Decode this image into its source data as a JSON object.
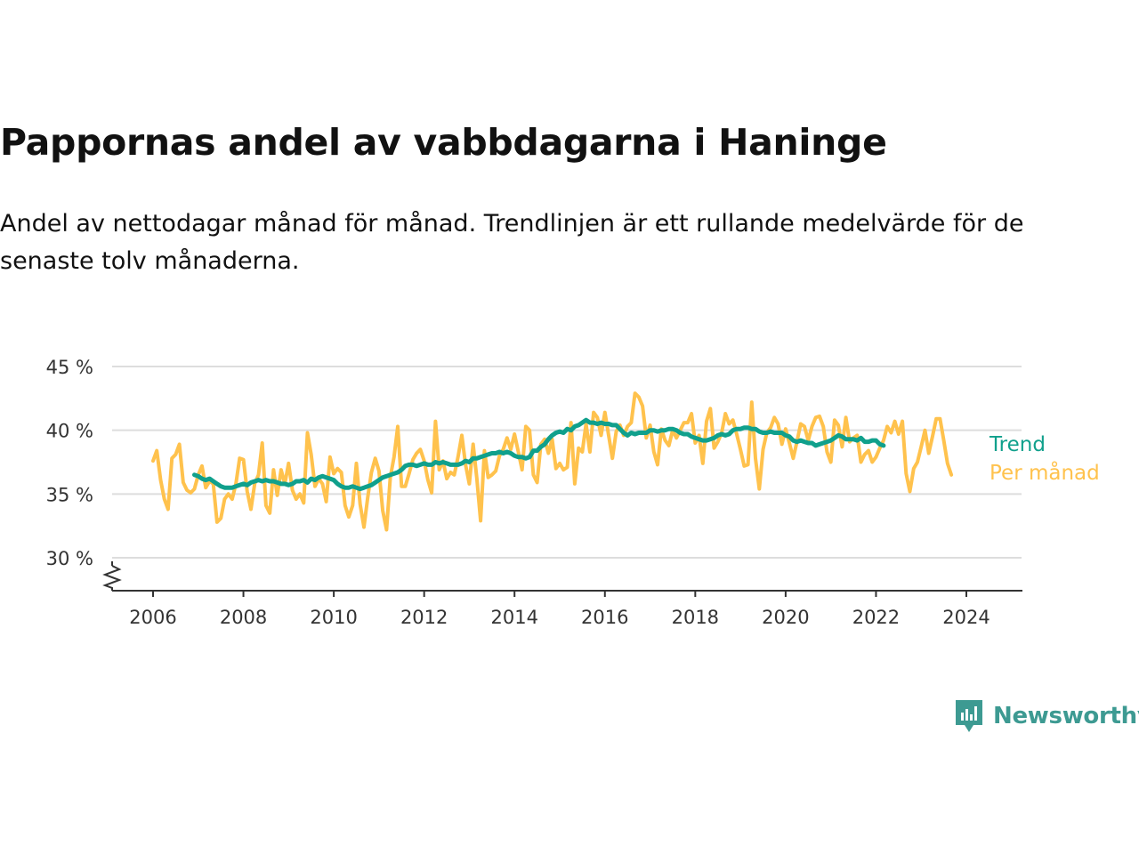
{
  "title": "Pappornas andel av vabbdagarna i Haninge",
  "subtitle": "Andel av nettodagar månad för månad. Trendlinjen är ett rullande medelvärde för de senaste tolv månaderna.",
  "brand": {
    "name": "Newsworthy",
    "icon": "newsworthy-logo-icon",
    "color": "#3d9a92"
  },
  "chart_data": {
    "type": "line",
    "x_unit": "decimal-year",
    "ylim": [
      27,
      45
    ],
    "y_axis_break": true,
    "y_ticks": [
      {
        "value": 45,
        "label": "45 %"
      },
      {
        "value": 40,
        "label": "40 %"
      },
      {
        "value": 35,
        "label": "35 %"
      },
      {
        "value": 30,
        "label": "30 %"
      }
    ],
    "x_ticks": [
      {
        "value": 2006,
        "label": "2006"
      },
      {
        "value": 2008,
        "label": "2008"
      },
      {
        "value": 2010,
        "label": "2010"
      },
      {
        "value": 2012,
        "label": "2012"
      },
      {
        "value": 2014,
        "label": "2014"
      },
      {
        "value": 2016,
        "label": "2016"
      },
      {
        "value": 2018,
        "label": "2018"
      },
      {
        "value": 2020,
        "label": "2020"
      },
      {
        "value": 2022,
        "label": "2022"
      },
      {
        "value": 2024,
        "label": "2024"
      }
    ],
    "grid": true,
    "series": [
      {
        "name": "Per månad",
        "color": "#ffc24d",
        "x_start": 2006.0,
        "x_step": 0.0833333,
        "values": [
          37.6,
          38.4,
          36.1,
          34.6,
          33.8,
          37.8,
          38.1,
          38.9,
          35.9,
          35.3,
          35.1,
          35.4,
          36.5,
          37.2,
          35.5,
          36.0,
          35.8,
          32.8,
          33.1,
          34.6,
          35.0,
          34.6,
          35.8,
          37.8,
          37.7,
          35.2,
          33.8,
          35.8,
          36.5,
          39.0,
          34.1,
          33.5,
          36.9,
          34.9,
          36.9,
          35.8,
          37.4,
          35.3,
          34.6,
          35.0,
          34.3,
          39.8,
          38.1,
          35.6,
          36.2,
          35.8,
          34.4,
          37.9,
          36.6,
          37.0,
          36.7,
          34.1,
          33.2,
          34.1,
          37.4,
          34.2,
          32.4,
          34.7,
          36.7,
          37.8,
          36.8,
          33.7,
          32.2,
          36.3,
          37.9,
          40.3,
          35.6,
          35.6,
          36.6,
          37.7,
          38.2,
          38.5,
          37.6,
          36.1,
          35.1,
          40.7,
          36.9,
          37.6,
          36.2,
          36.7,
          36.5,
          37.9,
          39.6,
          37.3,
          35.8,
          38.9,
          36.2,
          32.9,
          38.4,
          36.3,
          36.5,
          36.8,
          38.0,
          38.5,
          39.4,
          38.5,
          39.7,
          38.3,
          36.9,
          40.3,
          40.0,
          36.5,
          35.9,
          38.9,
          39.3,
          38.2,
          39.3,
          37.0,
          37.4,
          36.9,
          37.1,
          40.6,
          35.8,
          38.6,
          38.3,
          40.5,
          38.3,
          41.4,
          41.0,
          39.6,
          41.4,
          39.6,
          37.8,
          39.9,
          40.4,
          39.6,
          40.3,
          40.6,
          42.9,
          42.6,
          41.9,
          39.4,
          40.4,
          38.3,
          37.3,
          40.1,
          39.2,
          38.8,
          40.0,
          39.4,
          40.0,
          40.6,
          40.6,
          41.3,
          39.0,
          39.6,
          37.4,
          40.7,
          41.7,
          38.6,
          39.1,
          39.8,
          41.3,
          40.5,
          40.8,
          39.7,
          38.5,
          37.2,
          37.3,
          42.2,
          37.8,
          35.4,
          38.5,
          39.8,
          40.2,
          41.0,
          40.5,
          38.9,
          40.1,
          39.0,
          37.8,
          39.1,
          40.5,
          40.3,
          39.2,
          40.3,
          41.0,
          41.1,
          40.3,
          38.3,
          37.5,
          40.8,
          40.4,
          38.7,
          41.0,
          39.1,
          39.4,
          39.6,
          37.5,
          38.1,
          38.4,
          37.5,
          37.9,
          38.6,
          39.2,
          40.3,
          39.8,
          40.7,
          39.7,
          40.7,
          36.6,
          35.2,
          37.0,
          37.5,
          38.7,
          40.0,
          38.2,
          39.5,
          40.9,
          40.9,
          39.2,
          37.4,
          36.5
        ]
      },
      {
        "name": "Trend",
        "color": "#10a08c",
        "x_start": 2006.9167,
        "x_step": 0.0833333,
        "values": [
          36.5,
          36.4,
          36.2,
          36.1,
          36.2,
          36.0,
          35.8,
          35.6,
          35.5,
          35.5,
          35.5,
          35.6,
          35.7,
          35.8,
          35.7,
          35.9,
          36.0,
          36.1,
          36.0,
          36.1,
          36.0,
          36.0,
          35.9,
          35.8,
          35.8,
          35.7,
          35.8,
          36.0,
          36.0,
          36.1,
          35.9,
          36.2,
          36.1,
          36.3,
          36.4,
          36.3,
          36.2,
          36.1,
          35.8,
          35.6,
          35.5,
          35.5,
          35.6,
          35.5,
          35.4,
          35.5,
          35.6,
          35.7,
          35.9,
          36.1,
          36.3,
          36.4,
          36.5,
          36.6,
          36.7,
          36.9,
          37.2,
          37.3,
          37.3,
          37.2,
          37.3,
          37.4,
          37.3,
          37.3,
          37.5,
          37.4,
          37.5,
          37.4,
          37.3,
          37.3,
          37.3,
          37.4,
          37.6,
          37.5,
          37.8,
          37.8,
          37.9,
          38.0,
          38.1,
          38.2,
          38.2,
          38.3,
          38.2,
          38.3,
          38.2,
          38.0,
          37.9,
          37.9,
          37.8,
          37.9,
          38.4,
          38.4,
          38.7,
          38.9,
          39.3,
          39.6,
          39.8,
          39.9,
          39.8,
          40.1,
          40.0,
          40.3,
          40.4,
          40.6,
          40.8,
          40.6,
          40.6,
          40.5,
          40.6,
          40.5,
          40.5,
          40.4,
          40.4,
          40.1,
          39.8,
          39.6,
          39.8,
          39.7,
          39.8,
          39.8,
          39.8,
          40.0,
          40.0,
          39.9,
          40.0,
          40.0,
          40.1,
          40.1,
          40.0,
          39.8,
          39.7,
          39.7,
          39.5,
          39.4,
          39.3,
          39.2,
          39.2,
          39.3,
          39.4,
          39.6,
          39.7,
          39.6,
          39.7,
          40.0,
          40.1,
          40.1,
          40.2,
          40.2,
          40.1,
          40.1,
          39.9,
          39.8,
          39.8,
          39.9,
          39.8,
          39.8,
          39.8,
          39.6,
          39.5,
          39.2,
          39.1,
          39.2,
          39.1,
          39.0,
          39.0,
          38.8,
          38.9,
          39.0,
          39.1,
          39.2,
          39.4,
          39.6,
          39.5,
          39.3,
          39.3,
          39.3,
          39.2,
          39.4,
          39.1,
          39.1,
          39.2,
          39.2,
          38.9,
          38.8
        ]
      }
    ]
  }
}
